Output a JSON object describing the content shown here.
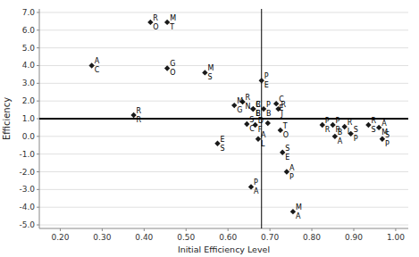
{
  "chart_data": {
    "type": "scatter",
    "xlabel": "Initial Efficiency Level",
    "ylabel": "Efficiency",
    "xlim": [
      0.15,
      1.03
    ],
    "ylim": [
      -5.2,
      7.2
    ],
    "xticks": [
      {
        "value": 0.2,
        "label": "0.20"
      },
      {
        "value": 0.3,
        "label": "0.30"
      },
      {
        "value": 0.4,
        "label": "0.40"
      },
      {
        "value": 0.5,
        "label": "0.50"
      },
      {
        "value": 0.6,
        "label": "0.60"
      },
      {
        "value": 0.7,
        "label": "0.70"
      },
      {
        "value": 0.8,
        "label": "0.80"
      },
      {
        "value": 0.9,
        "label": "0.90"
      },
      {
        "value": 1.0,
        "label": "1.00"
      }
    ],
    "yticks": [
      {
        "value": -5.0,
        "label": "-5.0"
      },
      {
        "value": -4.0,
        "label": "-4.0"
      },
      {
        "value": -3.0,
        "label": "-3.0"
      },
      {
        "value": -2.0,
        "label": "-2.0"
      },
      {
        "value": -1.0,
        "label": "-1.0"
      },
      {
        "value": 0.0,
        "label": "0.0"
      },
      {
        "value": 1.0,
        "label": "1.0"
      },
      {
        "value": 2.0,
        "label": "2.0"
      },
      {
        "value": 3.0,
        "label": "3.0"
      },
      {
        "value": 4.0,
        "label": "4.0"
      },
      {
        "value": 5.0,
        "label": "5.0"
      },
      {
        "value": 6.0,
        "label": "6.0"
      },
      {
        "value": 7.0,
        "label": "7.0"
      }
    ],
    "grid": "y",
    "hlines": [
      1.0
    ],
    "vlines": [
      0.68
    ],
    "marker": "diamond",
    "color": "#1a1a1a",
    "x": [
      0.275,
      0.375,
      0.455,
      0.415,
      0.455,
      0.545,
      0.575,
      0.615,
      0.635,
      0.645,
      0.66,
      0.66,
      0.665,
      0.672,
      0.655,
      0.68,
      0.685,
      0.695,
      0.715,
      0.72,
      0.725,
      0.73,
      0.74,
      0.755,
      0.825,
      0.85,
      0.855,
      0.878,
      0.893,
      0.935,
      0.96,
      0.968
    ],
    "values": [
      4.0,
      1.2,
      3.85,
      6.45,
      6.45,
      3.6,
      -0.4,
      1.75,
      1.95,
      0.7,
      1.55,
      1.55,
      0.65,
      -0.15,
      -2.85,
      3.15,
      1.55,
      0.75,
      1.85,
      1.55,
      0.35,
      -0.9,
      -2.0,
      -4.25,
      0.65,
      0.65,
      0.0,
      0.55,
      0.15,
      0.65,
      0.5,
      -0.15
    ],
    "labels_above": [
      "A",
      "R",
      "G",
      "R",
      "M",
      "M",
      "E",
      "M",
      "R",
      "S",
      "C",
      "B",
      "D",
      "A",
      "P",
      "P",
      "P",
      null,
      "C",
      "R",
      "T",
      "S",
      "A",
      "M",
      "P",
      "P",
      "B",
      "R",
      "S",
      "R",
      "A",
      "S"
    ],
    "labels_below": [
      "C",
      "R",
      "O",
      "O",
      "T",
      "S",
      "S",
      "G",
      "N",
      "C",
      "B",
      "E",
      "F",
      "L",
      "A",
      "E",
      "B",
      null,
      "E",
      "J",
      "O",
      "E",
      "P",
      "A",
      "R",
      "R",
      "A",
      "I",
      "P",
      "S",
      "M",
      "P"
    ]
  }
}
